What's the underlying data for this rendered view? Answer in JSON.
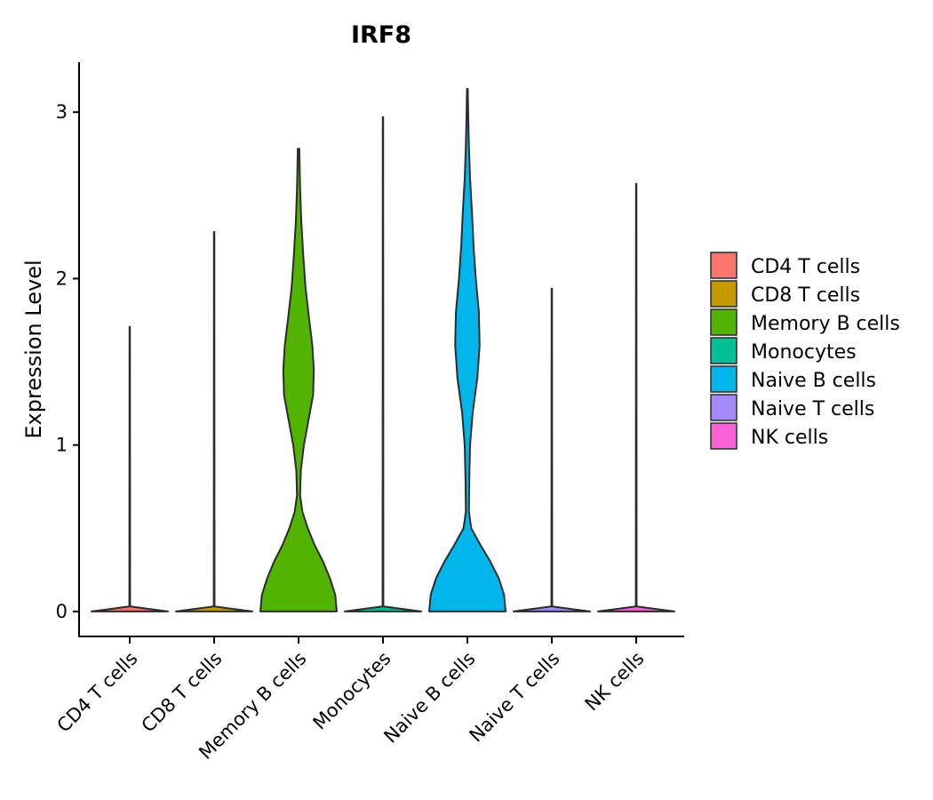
{
  "chart_data": {
    "type": "violin",
    "title": "IRF8",
    "xlabel": "",
    "ylabel": "Expression Level",
    "ylim": [
      -0.15,
      3.3
    ],
    "yticks": [
      0,
      1,
      2,
      3
    ],
    "categories": [
      "CD4 T cells",
      "CD8 T cells",
      "Memory B cells",
      "Monocytes",
      "Naive B cells",
      "Naive T cells",
      "NK cells"
    ],
    "colors": [
      "#F8766D",
      "#C49A00",
      "#53B400",
      "#00C094",
      "#00B6EB",
      "#A58AFF",
      "#FB61D7"
    ],
    "legend_title": "",
    "legend_position": "right",
    "violins": [
      {
        "name": "CD4 T cells",
        "max": 1.71,
        "profile": [
          [
            0,
            1.0
          ],
          [
            0.03,
            0.01
          ],
          [
            1.71,
            0.005
          ]
        ]
      },
      {
        "name": "CD8 T cells",
        "max": 2.28,
        "profile": [
          [
            0,
            1.0
          ],
          [
            0.03,
            0.01
          ],
          [
            2.28,
            0.005
          ]
        ]
      },
      {
        "name": "Memory B cells",
        "max": 2.78,
        "profile": [
          [
            0,
            1.0
          ],
          [
            0.1,
            0.96
          ],
          [
            0.2,
            0.82
          ],
          [
            0.3,
            0.64
          ],
          [
            0.4,
            0.42
          ],
          [
            0.5,
            0.24
          ],
          [
            0.6,
            0.1
          ],
          [
            0.7,
            0.04
          ],
          [
            0.85,
            0.06
          ],
          [
            1.0,
            0.14
          ],
          [
            1.15,
            0.26
          ],
          [
            1.3,
            0.38
          ],
          [
            1.45,
            0.4
          ],
          [
            1.6,
            0.36
          ],
          [
            1.75,
            0.28
          ],
          [
            1.95,
            0.18
          ],
          [
            2.15,
            0.12
          ],
          [
            2.35,
            0.07
          ],
          [
            2.55,
            0.04
          ],
          [
            2.78,
            0.02
          ]
        ]
      },
      {
        "name": "Monocytes",
        "max": 2.97,
        "profile": [
          [
            0,
            1.0
          ],
          [
            0.03,
            0.01
          ],
          [
            2.97,
            0.005
          ]
        ]
      },
      {
        "name": "Naive B cells",
        "max": 3.14,
        "profile": [
          [
            0,
            1.0
          ],
          [
            0.1,
            0.96
          ],
          [
            0.2,
            0.82
          ],
          [
            0.3,
            0.6
          ],
          [
            0.4,
            0.34
          ],
          [
            0.5,
            0.1
          ],
          [
            0.6,
            0.04
          ],
          [
            0.8,
            0.05
          ],
          [
            1.0,
            0.07
          ],
          [
            1.2,
            0.14
          ],
          [
            1.4,
            0.26
          ],
          [
            1.6,
            0.32
          ],
          [
            1.8,
            0.3
          ],
          [
            2.0,
            0.22
          ],
          [
            2.2,
            0.16
          ],
          [
            2.4,
            0.12
          ],
          [
            2.6,
            0.07
          ],
          [
            2.8,
            0.04
          ],
          [
            3.0,
            0.02
          ],
          [
            3.14,
            0.01
          ]
        ]
      },
      {
        "name": "Naive T cells",
        "max": 1.94,
        "profile": [
          [
            0,
            1.0
          ],
          [
            0.03,
            0.01
          ],
          [
            1.94,
            0.005
          ]
        ]
      },
      {
        "name": "NK cells",
        "max": 2.57,
        "profile": [
          [
            0,
            1.0
          ],
          [
            0.03,
            0.01
          ],
          [
            2.57,
            0.005
          ]
        ]
      }
    ]
  }
}
